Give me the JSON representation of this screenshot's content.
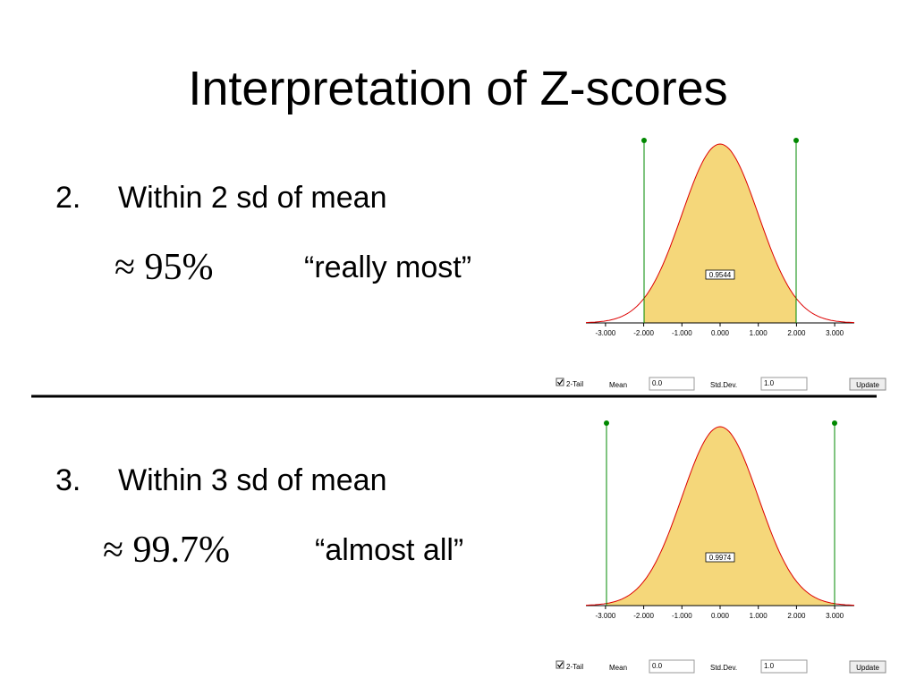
{
  "title": "Interpretation of Z-scores",
  "items": [
    {
      "number": "2.",
      "text": "Within 2 sd of mean",
      "approx": "≈ 95%",
      "quote": "“really most”",
      "applet": {
        "area": "0.9544",
        "ticks": [
          "-3.000",
          "-2.000",
          "-1.000",
          "0.000",
          "1.000",
          "2.000",
          "3.000"
        ],
        "checkbox": "2-Tail",
        "mean_label": "Mean",
        "mean": "0.0",
        "sd_label": "Std.Dev.",
        "sd": "1.0",
        "button": "Update"
      }
    },
    {
      "number": "3.",
      "text": "Within 3 sd of mean",
      "approx": "≈ 99.7%",
      "quote": "“almost all”",
      "applet": {
        "area": "0.9974",
        "ticks": [
          "-3.000",
          "-2.000",
          "-1.000",
          "0.000",
          "1.000",
          "2.000",
          "3.000"
        ],
        "checkbox": "2-Tail",
        "mean_label": "Mean",
        "mean": "0.0",
        "sd_label": "Std.Dev.",
        "sd": "1.0",
        "button": "Update"
      }
    }
  ]
}
